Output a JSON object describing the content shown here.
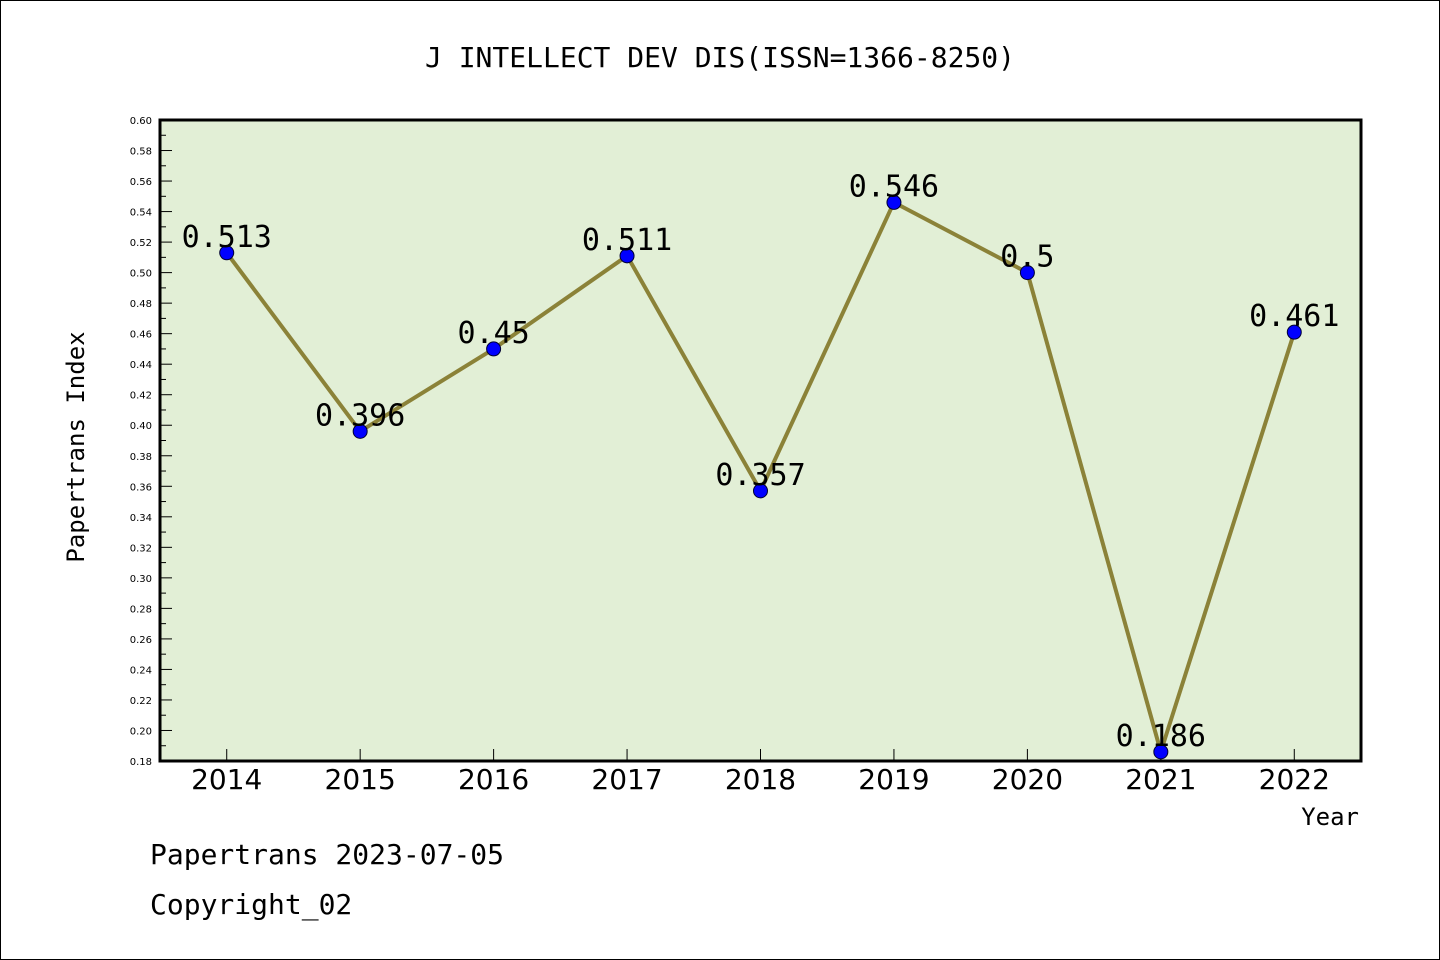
{
  "chart_data": {
    "type": "line",
    "title": "J INTELLECT DEV DIS(ISSN=1366-8250)",
    "xlabel": "Year",
    "ylabel": "Papertrans Index",
    "categories": [
      "2014",
      "2015",
      "2016",
      "2017",
      "2018",
      "2019",
      "2020",
      "2021",
      "2022"
    ],
    "values": [
      0.513,
      0.396,
      0.45,
      0.511,
      0.357,
      0.546,
      0.5,
      0.186,
      0.461
    ],
    "value_labels": [
      "0.513",
      "0.396",
      "0.45",
      "0.511",
      "0.357",
      "0.546",
      "0.5",
      "0.186",
      "0.461"
    ],
    "ylim": [
      0.18,
      0.6
    ],
    "ytick_step": 0.02,
    "ytick_labels": [
      "0.18",
      "0.20",
      "0.22",
      "0.24",
      "0.26",
      "0.28",
      "0.30",
      "0.32",
      "0.34",
      "0.36",
      "0.38",
      "0.40",
      "0.42",
      "0.44",
      "0.46",
      "0.48",
      "0.50",
      "0.52",
      "0.54",
      "0.56",
      "0.58",
      "0.60"
    ],
    "grid": false,
    "colors": {
      "plot_background": "#e2efd6",
      "line": "#8b8238",
      "marker": "#0000ff"
    }
  },
  "footer": {
    "line1": "Papertrans 2023-07-05",
    "line2": "Copyright_02"
  }
}
